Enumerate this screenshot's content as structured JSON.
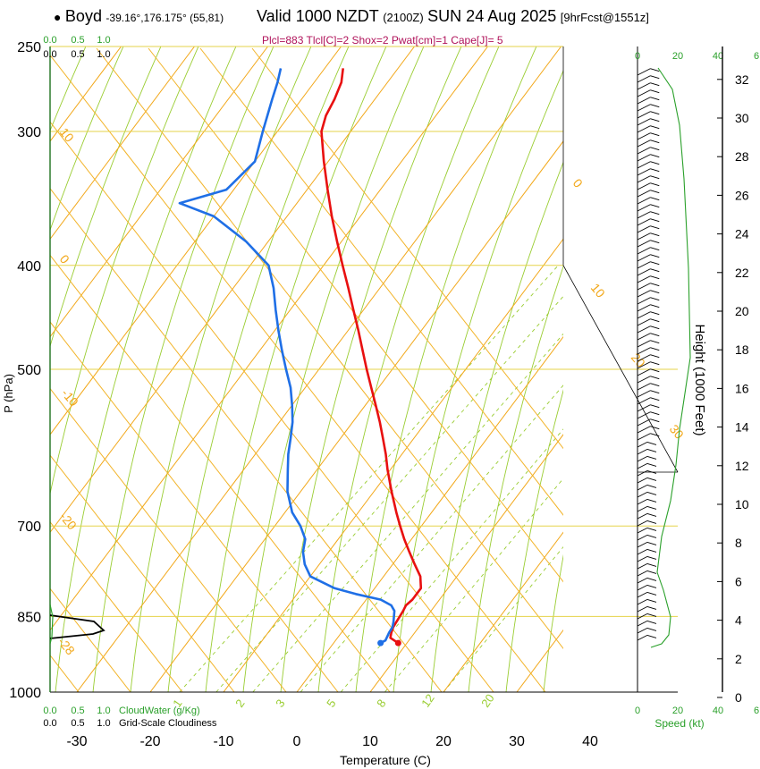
{
  "header": {
    "station_symbol": "●",
    "station": "Boyd",
    "coords": "-39.16°,176.175° (55,81)",
    "valid": "Valid 1000 NZDT",
    "valid_utc": "(2100Z)",
    "date": "SUN 24 Aug 2025",
    "forecast": "[9hrFcst@1551z]"
  },
  "indices": "Plcl=883 Tlcl[C]=2 Shox=2 Pwat[cm]=1 Cape[J]= 5",
  "colors": {
    "temperature": "#e81010",
    "dewpoint": "#1f6fe6",
    "isotherm": "#f2a81a",
    "dry_adiabat": "#f2b42a",
    "moist_adiabat": "#9acd32",
    "mixing_ratio": "#9acd32",
    "isobar": "#e6d34a",
    "cloud": "#2aa02a",
    "wind": "#000000"
  },
  "chart_data": {
    "type": "line",
    "xlabel": "Temperature (C)",
    "ylabel": "P (hPa)",
    "xlim": [
      -33,
      36
    ],
    "ylim": [
      1000,
      250
    ],
    "y_scale": "log",
    "x_ticks": [
      "-30",
      "-20",
      "-10",
      "0",
      "10",
      "20",
      "30",
      "40"
    ],
    "y_ticks": [
      "250",
      "300",
      "400",
      "500",
      "700",
      "850",
      "1000"
    ],
    "right_axis": {
      "label": "Height (1000 Feet)",
      "ticks": [
        "0",
        "2",
        "4",
        "6",
        "8",
        "10",
        "12",
        "14",
        "16",
        "18",
        "20",
        "22",
        "24",
        "26",
        "28",
        "30",
        "32"
      ]
    },
    "isotherm_labels": [
      "10",
      "0",
      "-10",
      "-20",
      "-28",
      "0",
      "10",
      "20",
      "30"
    ],
    "mixing_ratio_labels": [
      "1",
      "2",
      "3",
      "5",
      "8",
      "12",
      "20"
    ],
    "cloud_scale_top": {
      "green": [
        "0.0",
        "0.5",
        "1.0"
      ],
      "black": [
        "0.0",
        "0.5",
        "1.0"
      ]
    },
    "cloud_scale_bottom": {
      "green": [
        "0.0",
        "0.5",
        "1.0"
      ],
      "black": [
        "0.0",
        "0.5",
        "1.0"
      ]
    },
    "cloudwater_label": "CloudWater (g/Kg)",
    "cloudiness_label": "Grid-Scale Cloudiness",
    "speed_ticks_top": {
      "black": [
        "0",
        "20",
        "40",
        "6"
      ],
      "green": []
    },
    "speed_ticks_bottom": [
      "0",
      "20",
      "40",
      "6"
    ],
    "speed_label": "Speed (kt)",
    "series": [
      {
        "name": "Temperature",
        "p": [
          900,
          895,
          890,
          880,
          870,
          860,
          850,
          840,
          830,
          820,
          800,
          780,
          760,
          740,
          720,
          700,
          680,
          650,
          620,
          600,
          580,
          560,
          540,
          520,
          500,
          480,
          460,
          440,
          420,
          400,
          380,
          360,
          340,
          320,
          300,
          290,
          280,
          270,
          262
        ],
        "t": [
          8.8,
          8.0,
          7.2,
          6.8,
          6.5,
          6.4,
          6.3,
          6.2,
          6.0,
          6.3,
          6.3,
          5.0,
          3.0,
          1.0,
          -1.0,
          -2.9,
          -4.8,
          -7.6,
          -10.4,
          -12.2,
          -14.2,
          -16.3,
          -18.6,
          -21.0,
          -23.5,
          -26.0,
          -28.6,
          -31.4,
          -34.3,
          -37.4,
          -40.6,
          -43.9,
          -47.2,
          -50.6,
          -54.0,
          -55.0,
          -55.5,
          -56.3,
          -57.5
        ]
      },
      {
        "name": "Dewpoint",
        "p": [
          900,
          895,
          880,
          870,
          860,
          850,
          840,
          830,
          820,
          810,
          800,
          780,
          760,
          740,
          720,
          700,
          680,
          650,
          620,
          600,
          580,
          560,
          540,
          520,
          500,
          480,
          460,
          440,
          420,
          400,
          380,
          360,
          350,
          340,
          320,
          300,
          280,
          270,
          262
        ],
        "t": [
          6.4,
          6.8,
          6.5,
          6.4,
          6.0,
          5.5,
          5.0,
          4.0,
          2.0,
          -2.0,
          -5.5,
          -10.0,
          -12.0,
          -13.5,
          -14.5,
          -16.5,
          -19.0,
          -21.8,
          -24.0,
          -25.5,
          -26.8,
          -28.2,
          -30.0,
          -32.0,
          -34.5,
          -37.0,
          -39.5,
          -42.0,
          -44.5,
          -47.5,
          -53.0,
          -60.0,
          -66.0,
          -61.0,
          -60.0,
          -62.0,
          -64.0,
          -65.0,
          -66.0
        ]
      }
    ]
  }
}
